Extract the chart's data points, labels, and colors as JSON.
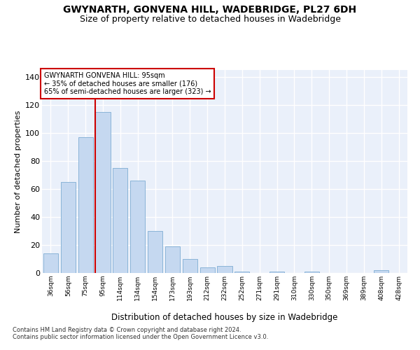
{
  "title": "GWYNARTH, GONVENA HILL, WADEBRIDGE, PL27 6DH",
  "subtitle": "Size of property relative to detached houses in Wadebridge",
  "xlabel": "Distribution of detached houses by size in Wadebridge",
  "ylabel": "Number of detached properties",
  "categories": [
    "36sqm",
    "56sqm",
    "75sqm",
    "95sqm",
    "114sqm",
    "134sqm",
    "154sqm",
    "173sqm",
    "193sqm",
    "212sqm",
    "232sqm",
    "252sqm",
    "271sqm",
    "291sqm",
    "310sqm",
    "330sqm",
    "350sqm",
    "369sqm",
    "389sqm",
    "408sqm",
    "428sqm"
  ],
  "values": [
    14,
    65,
    97,
    115,
    75,
    66,
    30,
    19,
    10,
    4,
    5,
    1,
    0,
    1,
    0,
    1,
    0,
    0,
    0,
    2,
    0
  ],
  "bar_color": "#c5d8f0",
  "bar_edge_color": "#8ab4d8",
  "red_line_index": 3,
  "annotation_line1": "GWYNARTH GONVENA HILL: 95sqm",
  "annotation_line2": "← 35% of detached houses are smaller (176)",
  "annotation_line3": "65% of semi-detached houses are larger (323) →",
  "annotation_box_color": "#ffffff",
  "annotation_box_edge_color": "#cc0000",
  "ylim": [
    0,
    145
  ],
  "yticks": [
    0,
    20,
    40,
    60,
    80,
    100,
    120,
    140
  ],
  "background_color": "#eaf0fa",
  "grid_color": "#ffffff",
  "title_fontsize": 10,
  "subtitle_fontsize": 9,
  "xlabel_fontsize": 8.5,
  "ylabel_fontsize": 8,
  "footnote1": "Contains HM Land Registry data © Crown copyright and database right 2024.",
  "footnote2": "Contains public sector information licensed under the Open Government Licence v3.0."
}
